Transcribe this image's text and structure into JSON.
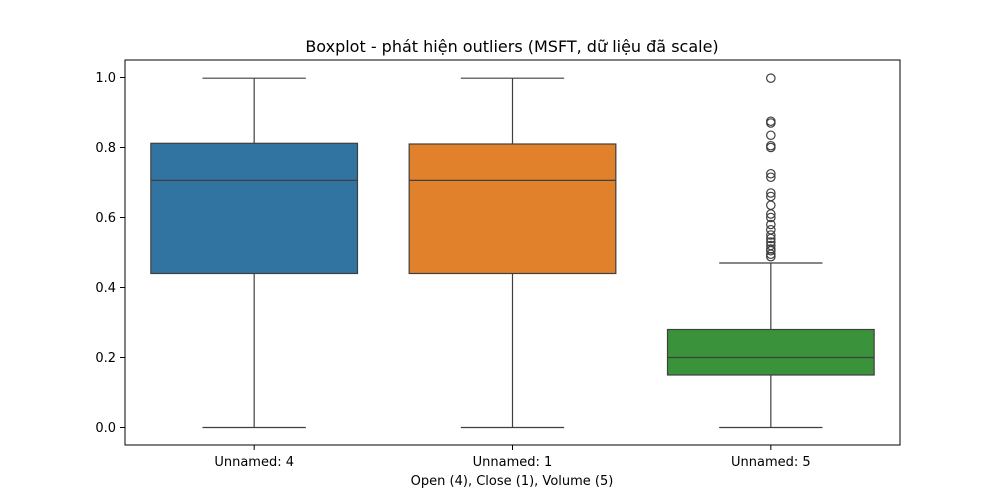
{
  "chart_data": {
    "type": "boxplot",
    "title": "Boxplot - phát hiện outliers (MSFT, dữ liệu đã scale)",
    "xlabel": "Open (4), Close (1), Volume (5)",
    "ylabel": "",
    "ylim": [
      -0.05,
      1.05
    ],
    "yticks": [
      0.0,
      0.2,
      0.4,
      0.6,
      0.8,
      1.0
    ],
    "ytick_labels": [
      "0.0",
      "0.2",
      "0.4",
      "0.6",
      "0.8",
      "1.0"
    ],
    "grid": false,
    "categories": [
      "Unnamed: 4",
      "Unnamed: 1",
      "Unnamed: 5"
    ],
    "boxes": [
      {
        "category": "Unnamed: 4",
        "color": "#3274a1",
        "whisker_low": 0.0,
        "q1": 0.44,
        "median": 0.706,
        "q3": 0.812,
        "whisker_high": 0.998,
        "outliers": []
      },
      {
        "category": "Unnamed: 1",
        "color": "#e1812c",
        "whisker_low": 0.0,
        "q1": 0.44,
        "median": 0.706,
        "q3": 0.81,
        "whisker_high": 0.998,
        "outliers": []
      },
      {
        "category": "Unnamed: 5",
        "color": "#3a923a",
        "whisker_low": 0.0,
        "q1": 0.15,
        "median": 0.2,
        "q3": 0.28,
        "whisker_high": 0.47,
        "outliers": [
          0.488,
          0.495,
          0.505,
          0.51,
          0.52,
          0.53,
          0.54,
          0.55,
          0.565,
          0.58,
          0.6,
          0.61,
          0.635,
          0.66,
          0.67,
          0.715,
          0.725,
          0.8,
          0.805,
          0.835,
          0.87,
          0.875,
          0.998
        ]
      }
    ]
  }
}
